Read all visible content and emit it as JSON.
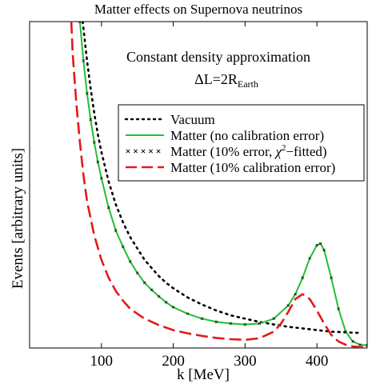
{
  "chart_data": {
    "type": "line",
    "title": "Matter effects on Supernova neutrinos",
    "xlabel": "k [MeV]",
    "ylabel": "Events [arbitrary units]",
    "xlim": [
      0,
      470
    ],
    "ylim": [
      0,
      1
    ],
    "xticks": [
      100,
      200,
      300,
      400
    ],
    "tick_labels": [
      "100",
      "200",
      "300",
      "400"
    ],
    "annotation": {
      "line1": "Constant density approximation",
      "line2_main": "ΔL=2R",
      "line2_sub": "Earth"
    },
    "legend": {
      "placement": "upper-right",
      "entries": [
        {
          "text": "Vacuum"
        },
        {
          "text": "Matter (no calibration error)"
        },
        {
          "text_pre": "Matter (10% error, ",
          "text_chi": "χ",
          "text_sup": "2",
          "text_post": "−fitted)"
        },
        {
          "text": "Matter (10% calibration error)"
        }
      ]
    },
    "series": [
      {
        "style": "dotted",
        "color": "#000000",
        "x": [
          74,
          80,
          85,
          90,
          95,
          100,
          110,
          120,
          130,
          140,
          150,
          160,
          170,
          180,
          190,
          200,
          220,
          240,
          260,
          280,
          300,
          320,
          340,
          360,
          380,
          400,
          420,
          440,
          460
        ],
        "y": [
          1.0,
          0.88,
          0.795,
          0.72,
          0.655,
          0.6,
          0.51,
          0.44,
          0.385,
          0.34,
          0.305,
          0.27,
          0.245,
          0.22,
          0.2,
          0.183,
          0.155,
          0.133,
          0.115,
          0.1,
          0.09,
          0.08,
          0.072,
          0.065,
          0.06,
          0.055,
          0.05,
          0.048,
          0.046
        ]
      },
      {
        "style": "solid",
        "color": "#22c033",
        "x": [
          70,
          75,
          80,
          85,
          90,
          95,
          100,
          110,
          120,
          130,
          140,
          150,
          160,
          170,
          180,
          190,
          200,
          220,
          240,
          260,
          280,
          300,
          320,
          340,
          360,
          370,
          380,
          390,
          400,
          405,
          410,
          420,
          430,
          440,
          450,
          460,
          470
        ],
        "y": [
          1.0,
          0.88,
          0.78,
          0.7,
          0.63,
          0.57,
          0.52,
          0.43,
          0.36,
          0.31,
          0.265,
          0.23,
          0.2,
          0.178,
          0.158,
          0.14,
          0.125,
          0.105,
          0.09,
          0.08,
          0.075,
          0.072,
          0.075,
          0.09,
          0.13,
          0.165,
          0.215,
          0.275,
          0.315,
          0.32,
          0.3,
          0.215,
          0.12,
          0.05,
          0.02,
          0.01,
          0.008
        ]
      },
      {
        "style": "crosses",
        "color": "#000000",
        "x": [
          70,
          75,
          80,
          85,
          90,
          95,
          100,
          110,
          120,
          130,
          140,
          150,
          160,
          170,
          180,
          190,
          200,
          220,
          240,
          260,
          280,
          300,
          320,
          340,
          360,
          370,
          380,
          390,
          400,
          405,
          410,
          420,
          430,
          440,
          450,
          460,
          470
        ],
        "y": [
          1.0,
          0.88,
          0.78,
          0.7,
          0.63,
          0.57,
          0.52,
          0.43,
          0.36,
          0.31,
          0.265,
          0.23,
          0.2,
          0.178,
          0.158,
          0.14,
          0.125,
          0.105,
          0.09,
          0.08,
          0.075,
          0.072,
          0.075,
          0.09,
          0.13,
          0.165,
          0.215,
          0.275,
          0.315,
          0.32,
          0.3,
          0.215,
          0.12,
          0.05,
          0.02,
          0.01,
          0.008
        ]
      },
      {
        "style": "dashed",
        "color": "#e31a1c",
        "x": [
          58,
          60,
          65,
          70,
          75,
          80,
          90,
          100,
          110,
          120,
          130,
          140,
          160,
          180,
          200,
          220,
          240,
          260,
          280,
          300,
          320,
          340,
          350,
          360,
          370,
          380,
          390,
          400,
          410,
          420,
          430,
          440,
          450,
          460,
          470
        ],
        "y": [
          1.0,
          0.9,
          0.75,
          0.63,
          0.53,
          0.45,
          0.345,
          0.27,
          0.215,
          0.175,
          0.145,
          0.12,
          0.09,
          0.07,
          0.055,
          0.045,
          0.037,
          0.031,
          0.027,
          0.025,
          0.03,
          0.05,
          0.075,
          0.11,
          0.15,
          0.165,
          0.15,
          0.115,
          0.075,
          0.04,
          0.02,
          0.01,
          0.005,
          0.003,
          0.002
        ]
      }
    ]
  }
}
